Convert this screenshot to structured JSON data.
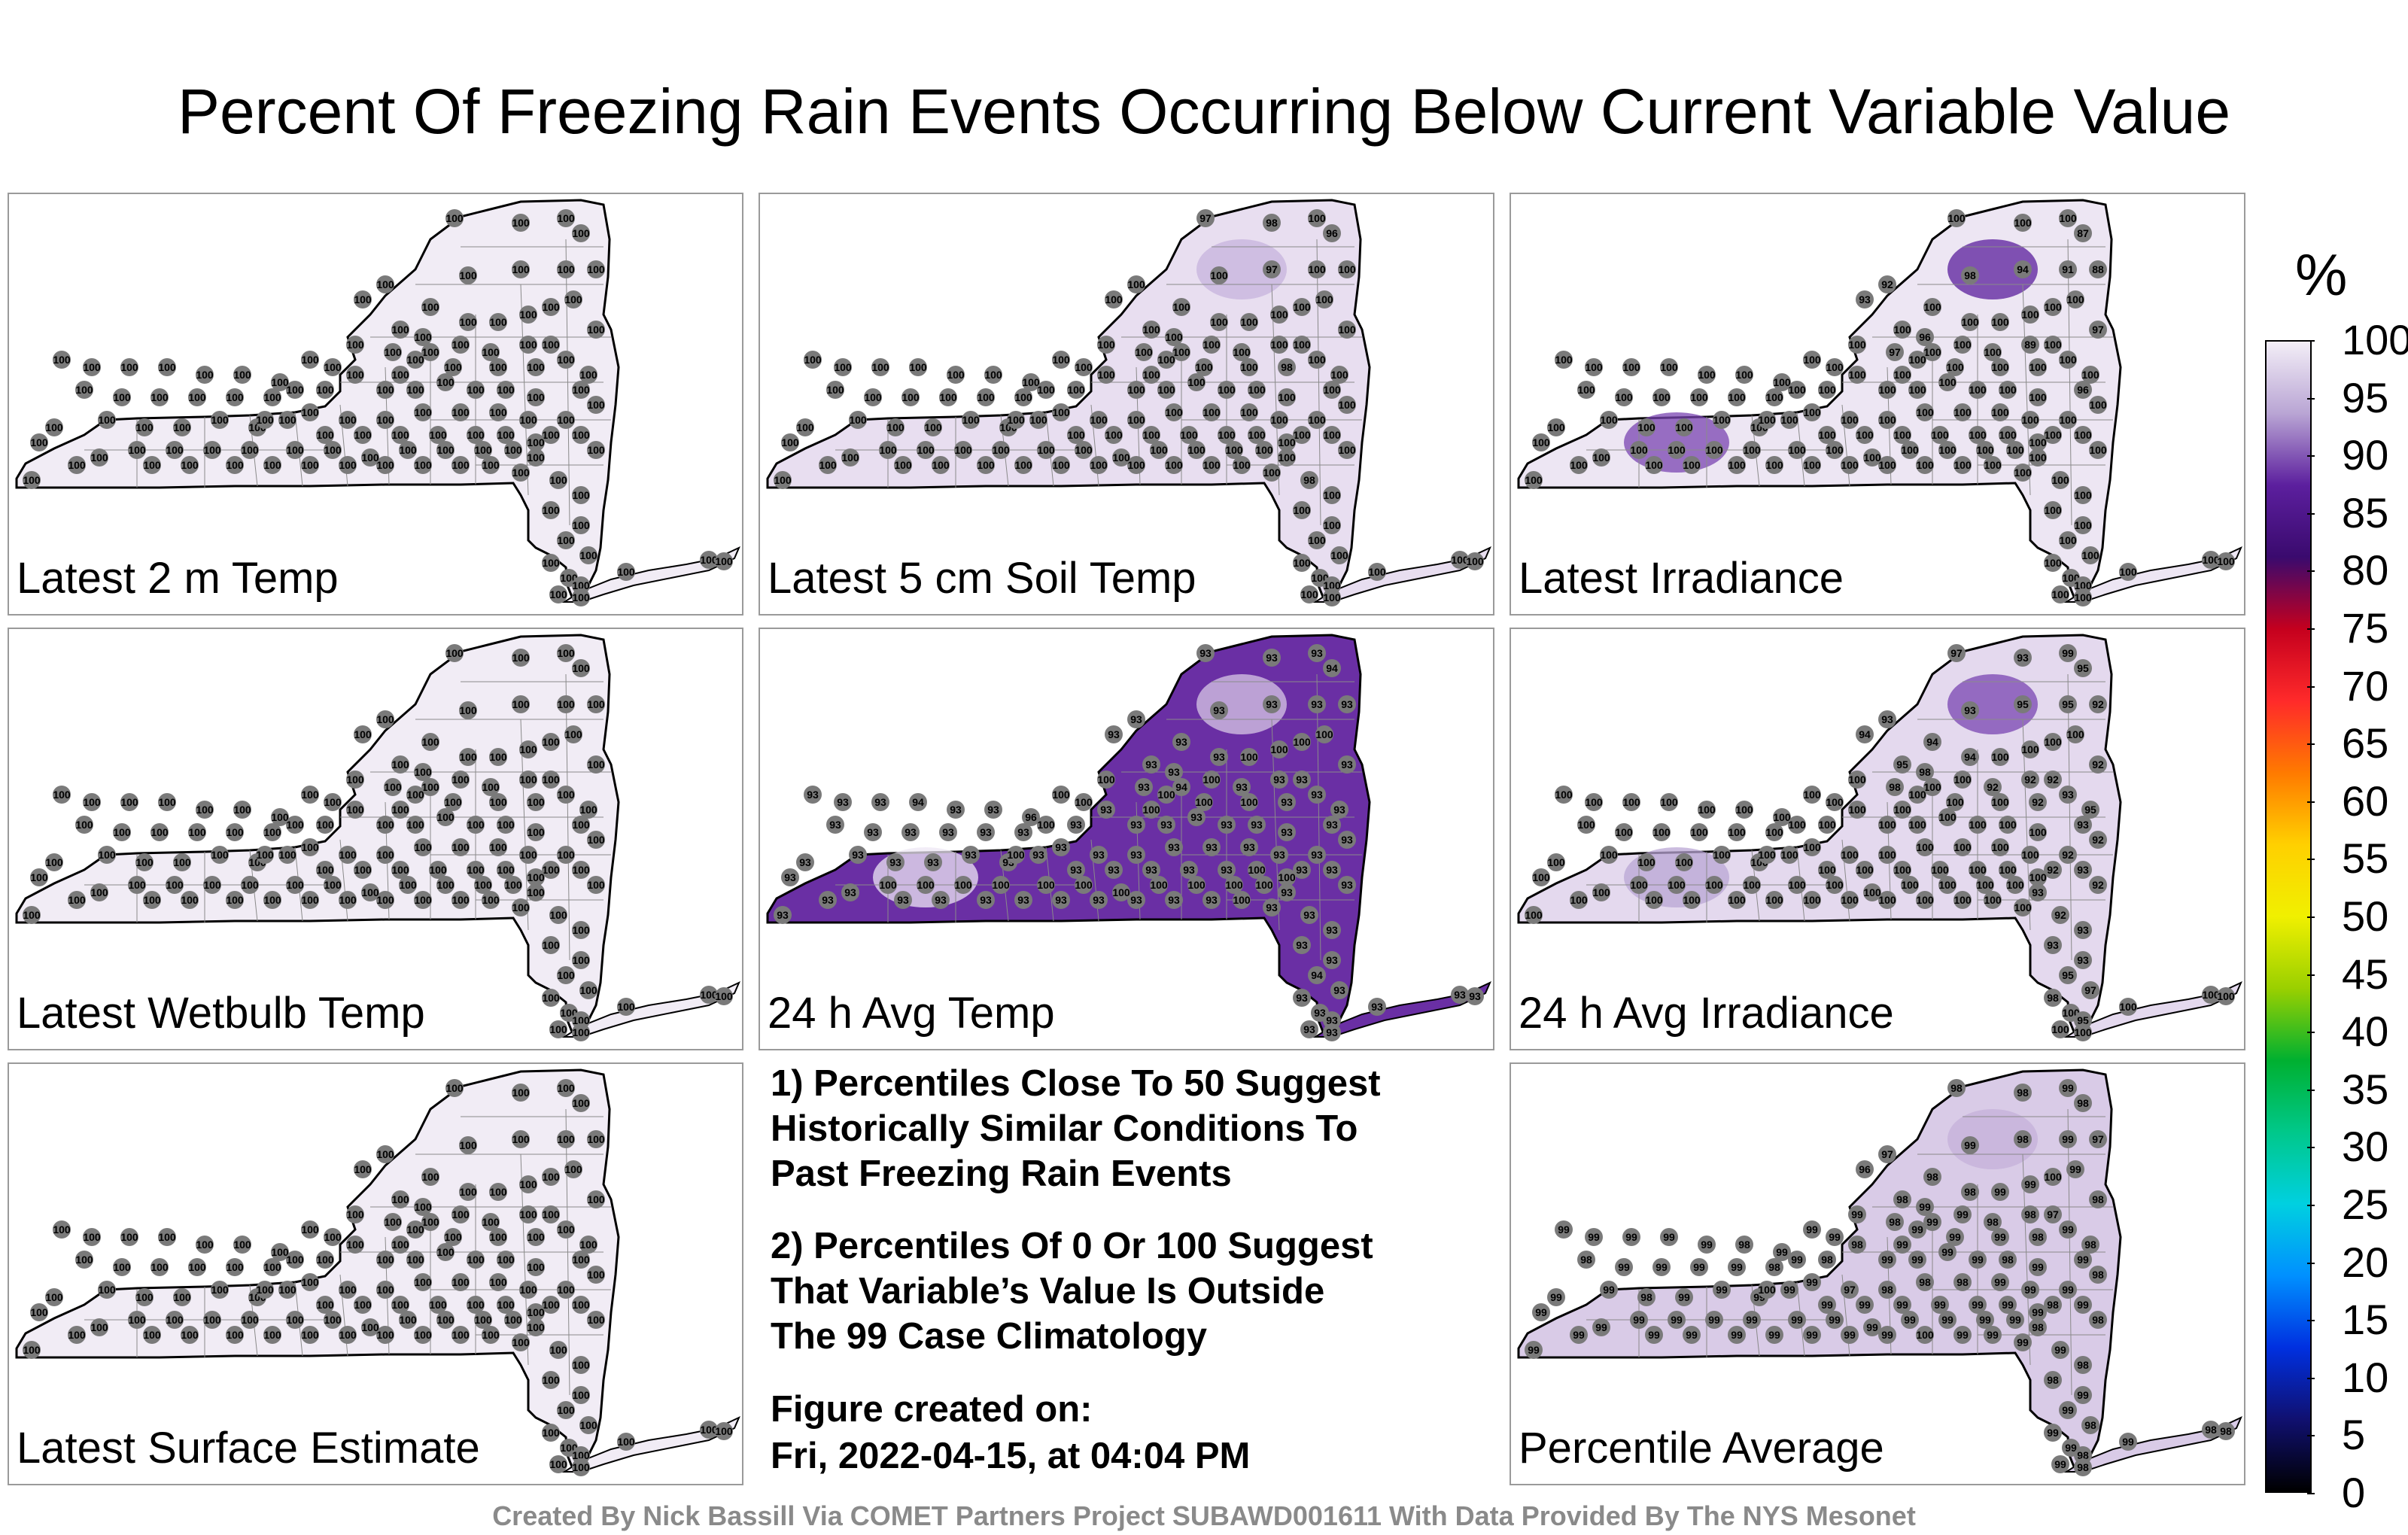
{
  "title": "Percent Of Freezing Rain Events Occurring Below Current Variable Value",
  "legend": {
    "unit": "%",
    "ticks": [
      "100",
      "95",
      "90",
      "85",
      "80",
      "75",
      "70",
      "65",
      "60",
      "55",
      "50",
      "45",
      "40",
      "35",
      "30",
      "25",
      "20",
      "15",
      "10",
      "5",
      "0"
    ],
    "colors": [
      "#f3eef7",
      "#b9a5d4",
      "#5c1f9e",
      "#3a0a6e",
      "#c5001e",
      "#ff2a2a",
      "#ff7a00",
      "#ffd000",
      "#f0f000",
      "#9ad000",
      "#00b030",
      "#00c88a",
      "#00d0e0",
      "#0090ff",
      "#0030e0",
      "#101070",
      "#000000"
    ]
  },
  "panels": [
    {
      "label": "Latest 2 m Temp",
      "fill": "#f1ecf5",
      "blobs": [],
      "stations": [
        "100",
        "100",
        "100",
        "100",
        "100",
        "100",
        "100",
        "100",
        "100",
        "100",
        "100",
        "100",
        "100",
        "100",
        "100",
        "100",
        "100",
        "100",
        "100",
        "100",
        "100",
        "100",
        "100",
        "100",
        "100",
        "100",
        "100",
        "100",
        "100",
        "100",
        "100",
        "100",
        "100",
        "100",
        "100",
        "100",
        "100",
        "100",
        "100",
        "100",
        "100",
        "100",
        "100",
        "100",
        "100",
        "100",
        "100",
        "100",
        "100",
        "100",
        "100",
        "100",
        "100",
        "100",
        "100",
        "100",
        "100",
        "100",
        "100",
        "100",
        "100",
        "100",
        "100",
        "100",
        "100",
        "100",
        "100",
        "100",
        "100",
        "100",
        "100",
        "100",
        "100",
        "100",
        "100",
        "100",
        "100",
        "100",
        "100",
        "100",
        "100",
        "100",
        "100",
        "100",
        "100",
        "100",
        "100",
        "100",
        "100",
        "100",
        "100",
        "100",
        "100",
        "100",
        "100",
        "100",
        "100",
        "100",
        "100",
        "100",
        "100",
        "100",
        "100",
        "100",
        "100",
        "100",
        "100",
        "100",
        "100",
        "100",
        "100",
        "100",
        "100",
        "100",
        "100",
        "100",
        "100",
        "100",
        "100",
        "100",
        "100",
        "100",
        "100",
        "100",
        "100",
        "100"
      ]
    },
    {
      "label": "Latest 5 cm Soil Temp",
      "fill": "#e8def0",
      "blobs": [
        "#c7b3dd"
      ],
      "stations": [
        "97",
        "98",
        "100",
        "96",
        "100",
        "100",
        "97",
        "100",
        "100",
        "100",
        "100",
        "100",
        "100",
        "100",
        "100",
        "100",
        "100",
        "100",
        "100",
        "98",
        "100",
        "100",
        "100",
        "100",
        "100",
        "100",
        "100",
        "100",
        "100",
        "100",
        "98",
        "100",
        "100",
        "100",
        "100",
        "100",
        "100",
        "100",
        "100",
        "100",
        "100",
        "100",
        "100",
        "100",
        "100",
        "100",
        "100",
        "100",
        "100",
        "100",
        "100",
        "100",
        "100",
        "100",
        "100",
        "100",
        "100",
        "100",
        "100",
        "100",
        "100",
        "100",
        "100",
        "100",
        "100",
        "100",
        "100",
        "100",
        "100",
        "100",
        "100",
        "100",
        "100",
        "100",
        "100",
        "100",
        "100",
        "100",
        "100",
        "100",
        "100",
        "100",
        "100",
        "100",
        "100",
        "100",
        "100",
        "100",
        "100",
        "100",
        "100",
        "100",
        "100",
        "100",
        "100",
        "100",
        "100",
        "100",
        "100",
        "100",
        "100",
        "100",
        "100",
        "100",
        "100",
        "100",
        "100",
        "100",
        "100",
        "100",
        "100",
        "100",
        "100",
        "100",
        "100",
        "100",
        "100",
        "100",
        "100",
        "100",
        "100",
        "100",
        "100",
        "100",
        "100",
        "100"
      ]
    },
    {
      "label": "Latest Irradiance",
      "fill": "#ede6f3",
      "blobs": [
        "#5a1d9c",
        "#7a44b2"
      ],
      "stations": [
        "100",
        "100",
        "100",
        "87",
        "92",
        "93",
        "94",
        "91",
        "88",
        "98",
        "100",
        "100",
        "96",
        "97",
        "100",
        "100",
        "100",
        "89",
        "100",
        "100",
        "100",
        "97",
        "100",
        "96",
        "100",
        "100",
        "100",
        "100",
        "100",
        "100",
        "100",
        "100",
        "100",
        "100",
        "100",
        "100",
        "100",
        "100",
        "100",
        "100",
        "100",
        "100",
        "100",
        "100",
        "100",
        "100",
        "100",
        "100",
        "100",
        "100",
        "100",
        "100",
        "100",
        "100",
        "100",
        "100",
        "100",
        "100",
        "100",
        "100",
        "100",
        "100",
        "100",
        "100",
        "100",
        "100",
        "100",
        "100",
        "100",
        "100",
        "100",
        "100",
        "100",
        "100",
        "100",
        "100",
        "100",
        "100",
        "100",
        "100",
        "100",
        "100",
        "100",
        "100",
        "100",
        "100",
        "100",
        "100",
        "100",
        "100",
        "100",
        "100",
        "100",
        "100",
        "100",
        "100",
        "100",
        "100",
        "100",
        "100",
        "100",
        "100",
        "100",
        "100",
        "100",
        "100",
        "100",
        "100",
        "100",
        "100",
        "100",
        "100",
        "100",
        "100",
        "100",
        "100",
        "100",
        "100",
        "100",
        "100",
        "100",
        "100",
        "100",
        "100",
        "100",
        "100"
      ]
    },
    {
      "label": "Latest Wetbulb Temp",
      "fill": "#f1ecf5",
      "blobs": [],
      "stations": [
        "100",
        "100",
        "100",
        "100",
        "100",
        "100",
        "100",
        "100",
        "100",
        "100",
        "100",
        "100",
        "100",
        "100",
        "100",
        "100",
        "100",
        "100",
        "100",
        "100",
        "100",
        "100",
        "100",
        "100",
        "100",
        "100",
        "100",
        "100",
        "100",
        "100",
        "100",
        "100",
        "100",
        "100",
        "100",
        "100",
        "100",
        "100",
        "100",
        "100",
        "100",
        "100",
        "100",
        "100",
        "100",
        "100",
        "100",
        "100",
        "100",
        "100",
        "100",
        "100",
        "100",
        "100",
        "100",
        "100",
        "100",
        "100",
        "100",
        "100",
        "100",
        "100",
        "100",
        "100",
        "100",
        "100",
        "100",
        "100",
        "100",
        "100",
        "100",
        "100",
        "100",
        "100",
        "100",
        "100",
        "100",
        "100",
        "100",
        "100",
        "100",
        "100",
        "100",
        "100",
        "100",
        "100",
        "100",
        "100",
        "100",
        "100",
        "100",
        "100",
        "100",
        "100",
        "100",
        "100",
        "100",
        "100",
        "100",
        "100",
        "100",
        "100",
        "100",
        "100",
        "100",
        "100",
        "100",
        "100",
        "100",
        "100",
        "100",
        "100",
        "100",
        "100",
        "100",
        "100",
        "100",
        "100",
        "100",
        "100",
        "100",
        "100",
        "100",
        "100",
        "100",
        "100"
      ]
    },
    {
      "label": "24 h Avg Temp",
      "fill": "#6a2fa4",
      "blobs": [
        "#d8c8e6",
        "#eee7f4"
      ],
      "stations": [
        "93",
        "93",
        "93",
        "94",
        "93",
        "93",
        "93",
        "93",
        "93",
        "93",
        "93",
        "93",
        "93",
        "93",
        "94",
        "93",
        "93",
        "93",
        "93",
        "93",
        "93",
        "93",
        "93",
        "93",
        "93",
        "93",
        "93",
        "93",
        "93",
        "93",
        "93",
        "93",
        "93",
        "93",
        "94",
        "93",
        "93",
        "93",
        "93",
        "93",
        "93",
        "93",
        "93",
        "93",
        "93",
        "93",
        "93",
        "94",
        "93",
        "93",
        "96",
        "93",
        "93",
        "93",
        "93",
        "93",
        "93",
        "93",
        "93",
        "93",
        "93",
        "93",
        "93",
        "93",
        "93",
        "93",
        "93",
        "93",
        "93",
        "93",
        "93",
        "93",
        "93",
        "93",
        "93",
        "93",
        "93",
        "93",
        "93",
        "93",
        "93",
        "93",
        "93",
        "100",
        "93",
        "93",
        "93",
        "93",
        "93",
        "93",
        "93",
        "93",
        "93",
        "93",
        "93",
        "93",
        "100",
        "93",
        "93",
        "93",
        "100",
        "100",
        "100",
        "100",
        "100",
        "100",
        "100",
        "100",
        "100",
        "100",
        "100",
        "100",
        "100",
        "100",
        "100",
        "100",
        "100",
        "100",
        "100",
        "100",
        "100",
        "100",
        "100",
        "100",
        "100",
        "100"
      ]
    },
    {
      "label": "24 h Avg Irradiance",
      "fill": "#e4d9ee",
      "blobs": [
        "#7a44b2",
        "#b9a5d4"
      ],
      "stations": [
        "97",
        "93",
        "99",
        "95",
        "93",
        "94",
        "95",
        "95",
        "92",
        "93",
        "94",
        "95",
        "98",
        "98",
        "100",
        "94",
        "92",
        "92",
        "92",
        "92",
        "93",
        "92",
        "95",
        "93",
        "92",
        "92",
        "92",
        "93",
        "92",
        "93",
        "92",
        "93",
        "93",
        "93",
        "95",
        "97",
        "98",
        "100",
        "95",
        "100",
        "100",
        "100",
        "100",
        "100",
        "100",
        "100",
        "100",
        "100",
        "100",
        "100",
        "100",
        "100",
        "100",
        "100",
        "100",
        "100",
        "100",
        "100",
        "100",
        "100",
        "100",
        "100",
        "100",
        "100",
        "100",
        "100",
        "100",
        "100",
        "100",
        "100",
        "100",
        "100",
        "100",
        "100",
        "100",
        "100",
        "100",
        "100",
        "100",
        "100",
        "100",
        "100",
        "100",
        "100",
        "100",
        "100",
        "100",
        "100",
        "100",
        "100",
        "100",
        "100",
        "100",
        "100",
        "100",
        "100",
        "100",
        "100",
        "100",
        "100",
        "100",
        "100",
        "100",
        "100",
        "100",
        "100",
        "100",
        "100",
        "100",
        "100",
        "100",
        "100",
        "100",
        "100",
        "100",
        "100",
        "100",
        "100",
        "100",
        "100",
        "100",
        "100",
        "100",
        "100",
        "100",
        "100"
      ]
    },
    {
      "label": "Latest Surface Estimate",
      "fill": "#f1ecf5",
      "blobs": [],
      "stations": [
        "100",
        "100",
        "100",
        "100",
        "100",
        "100",
        "100",
        "100",
        "100",
        "100",
        "100",
        "100",
        "100",
        "100",
        "100",
        "100",
        "100",
        "100",
        "100",
        "100",
        "100",
        "100",
        "100",
        "100",
        "100",
        "100",
        "100",
        "100",
        "100",
        "100",
        "100",
        "100",
        "100",
        "100",
        "100",
        "100",
        "100",
        "100",
        "100",
        "100",
        "100",
        "100",
        "100",
        "100",
        "100",
        "100",
        "100",
        "100",
        "100",
        "100",
        "100",
        "100",
        "100",
        "100",
        "100",
        "100",
        "100",
        "100",
        "100",
        "100",
        "100",
        "100",
        "100",
        "100",
        "100",
        "100",
        "100",
        "100",
        "100",
        "100",
        "100",
        "100",
        "100",
        "100",
        "100",
        "100",
        "100",
        "100",
        "100",
        "100",
        "100",
        "100",
        "100",
        "100",
        "100",
        "100",
        "100",
        "100",
        "100",
        "100",
        "100",
        "100",
        "100",
        "100",
        "100",
        "100",
        "100",
        "100",
        "100",
        "100",
        "100",
        "100",
        "100",
        "100",
        "100",
        "100",
        "100",
        "100",
        "100",
        "100",
        "100",
        "100",
        "100",
        "100",
        "100",
        "100",
        "100",
        "100",
        "100",
        "100",
        "100",
        "100",
        "100",
        "100",
        "100",
        "100"
      ]
    },
    {
      "label": "Percentile Average",
      "fill": "#d9cbe7",
      "blobs": [
        "#c4b0da"
      ],
      "stations": [
        "98",
        "98",
        "99",
        "98",
        "97",
        "96",
        "98",
        "99",
        "97",
        "99",
        "98",
        "98",
        "99",
        "98",
        "99",
        "98",
        "98",
        "98",
        "97",
        "98",
        "99",
        "98",
        "98",
        "99",
        "98",
        "99",
        "98",
        "99",
        "98",
        "98",
        "99",
        "98",
        "98",
        "99",
        "99",
        "98",
        "99",
        "99",
        "98",
        "99",
        "98",
        "99",
        "98",
        "98",
        "99",
        "99",
        "99",
        "99",
        "99",
        "98",
        "99",
        "98",
        "98",
        "99",
        "99",
        "99",
        "99",
        "98",
        "99",
        "98",
        "99",
        "99",
        "99",
        "99",
        "98",
        "99",
        "97",
        "98",
        "98",
        "98",
        "99",
        "99",
        "99",
        "98",
        "99",
        "99",
        "99",
        "99",
        "99",
        "99",
        "99",
        "99",
        "99",
        "99",
        "99",
        "99",
        "99",
        "99",
        "99",
        "99",
        "99",
        "99",
        "99",
        "99",
        "100",
        "99",
        "99",
        "99",
        "99",
        "99",
        "99",
        "99",
        "99",
        "99",
        "99",
        "99",
        "99",
        "99",
        "99",
        "99",
        "99",
        "99",
        "99",
        "99",
        "99",
        "99",
        "99",
        "99",
        "100",
        "99",
        "99",
        "99",
        "99",
        "99",
        "99",
        "100"
      ]
    }
  ],
  "notes": {
    "note1": [
      "1) Percentiles Close To 50 Suggest",
      "Historically Similar Conditions To",
      "Past Freezing Rain Events"
    ],
    "note2": [
      "2) Percentiles Of 0 Or 100 Suggest",
      "That Variable’s Value Is Outside",
      "The 99 Case Climatology"
    ],
    "created_label": "Figure created on:",
    "created_value": "Fri, 2022-04-15, at 04:04 PM"
  },
  "footer": "Created By Nick Bassill Via COMET Partners Project SUBAWD001611 With Data Provided By The NYS Mesonet"
}
